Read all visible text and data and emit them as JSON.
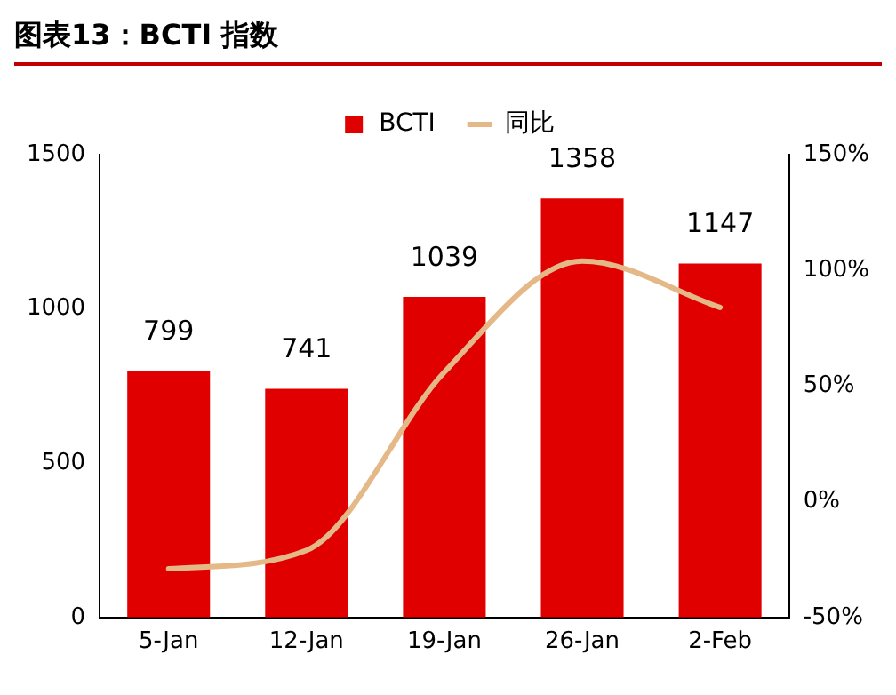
{
  "chart_data": {
    "type": "bar",
    "title": "图表13：BCTI 指数",
    "categories": [
      "5-Jan",
      "12-Jan",
      "19-Jan",
      "26-Jan",
      "2-Feb"
    ],
    "series": [
      {
        "name": "BCTI",
        "color": "#e00000",
        "values": [
          799,
          741,
          1039,
          1358,
          1147
        ],
        "value_labels": [
          "799",
          "741",
          "1039",
          "1358",
          "1147"
        ]
      },
      {
        "name": "同比",
        "type": "line",
        "axis": "y2",
        "color": "#e5b887",
        "values": [
          -29,
          -21,
          56,
          104,
          84
        ]
      }
    ],
    "ylim": [
      0,
      1500
    ],
    "yticks": [
      0,
      500,
      1000,
      1500
    ],
    "y2lim": [
      -50,
      150
    ],
    "y2ticks": [
      {
        "value": -50,
        "label": "-50%"
      },
      {
        "value": 0,
        "label": "0%"
      },
      {
        "value": 50,
        "label": "50%"
      },
      {
        "value": 100,
        "label": "100%"
      },
      {
        "value": 150,
        "label": "150%"
      }
    ],
    "grid": false,
    "legend": "top",
    "marker": "none"
  }
}
